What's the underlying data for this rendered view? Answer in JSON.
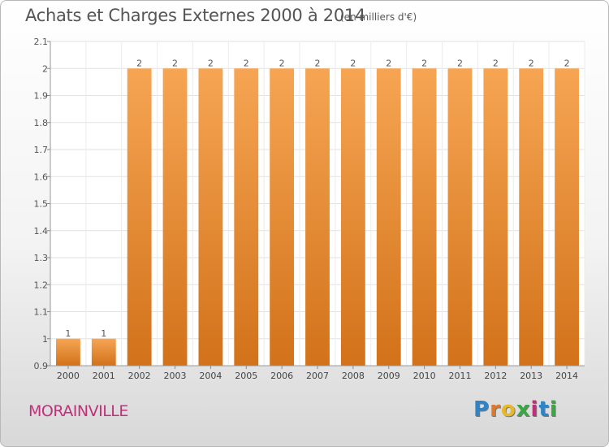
{
  "title": "Achats et Charges Externes 2000 à 2014",
  "subtitle": "(en milliers d'€)",
  "commune": "MORAINVILLE",
  "logo": {
    "text": "Proxiti",
    "colors": [
      "#2f84c8",
      "#e0782a",
      "#e6b82a",
      "#3aa840",
      "#c0307a",
      "#2f84c8",
      "#3aa840"
    ]
  },
  "chart_data": {
    "type": "bar",
    "title": "Achats et Charges Externes 2000 à 2014",
    "categories": [
      "2000",
      "2001",
      "2002",
      "2003",
      "2004",
      "2005",
      "2006",
      "2007",
      "2008",
      "2009",
      "2010",
      "2011",
      "2012",
      "2013",
      "2014"
    ],
    "values": [
      1,
      1,
      2,
      2,
      2,
      2,
      2,
      2,
      2,
      2,
      2,
      2,
      2,
      2,
      2
    ],
    "data_labels": [
      "1",
      "1",
      "2",
      "2",
      "2",
      "2",
      "2",
      "2",
      "2",
      "2",
      "2",
      "2",
      "2",
      "2",
      "2"
    ],
    "ylim": [
      0.9,
      2.1
    ],
    "yticks": [
      "0.9",
      "1",
      "1.1",
      "1.2",
      "1.3",
      "1.4",
      "1.5",
      "1.6",
      "1.7",
      "1.8",
      "1.9",
      "2",
      "2.1"
    ],
    "grid": true,
    "bar_color_top": "#f6a553",
    "bar_color_bottom": "#d2721a"
  }
}
